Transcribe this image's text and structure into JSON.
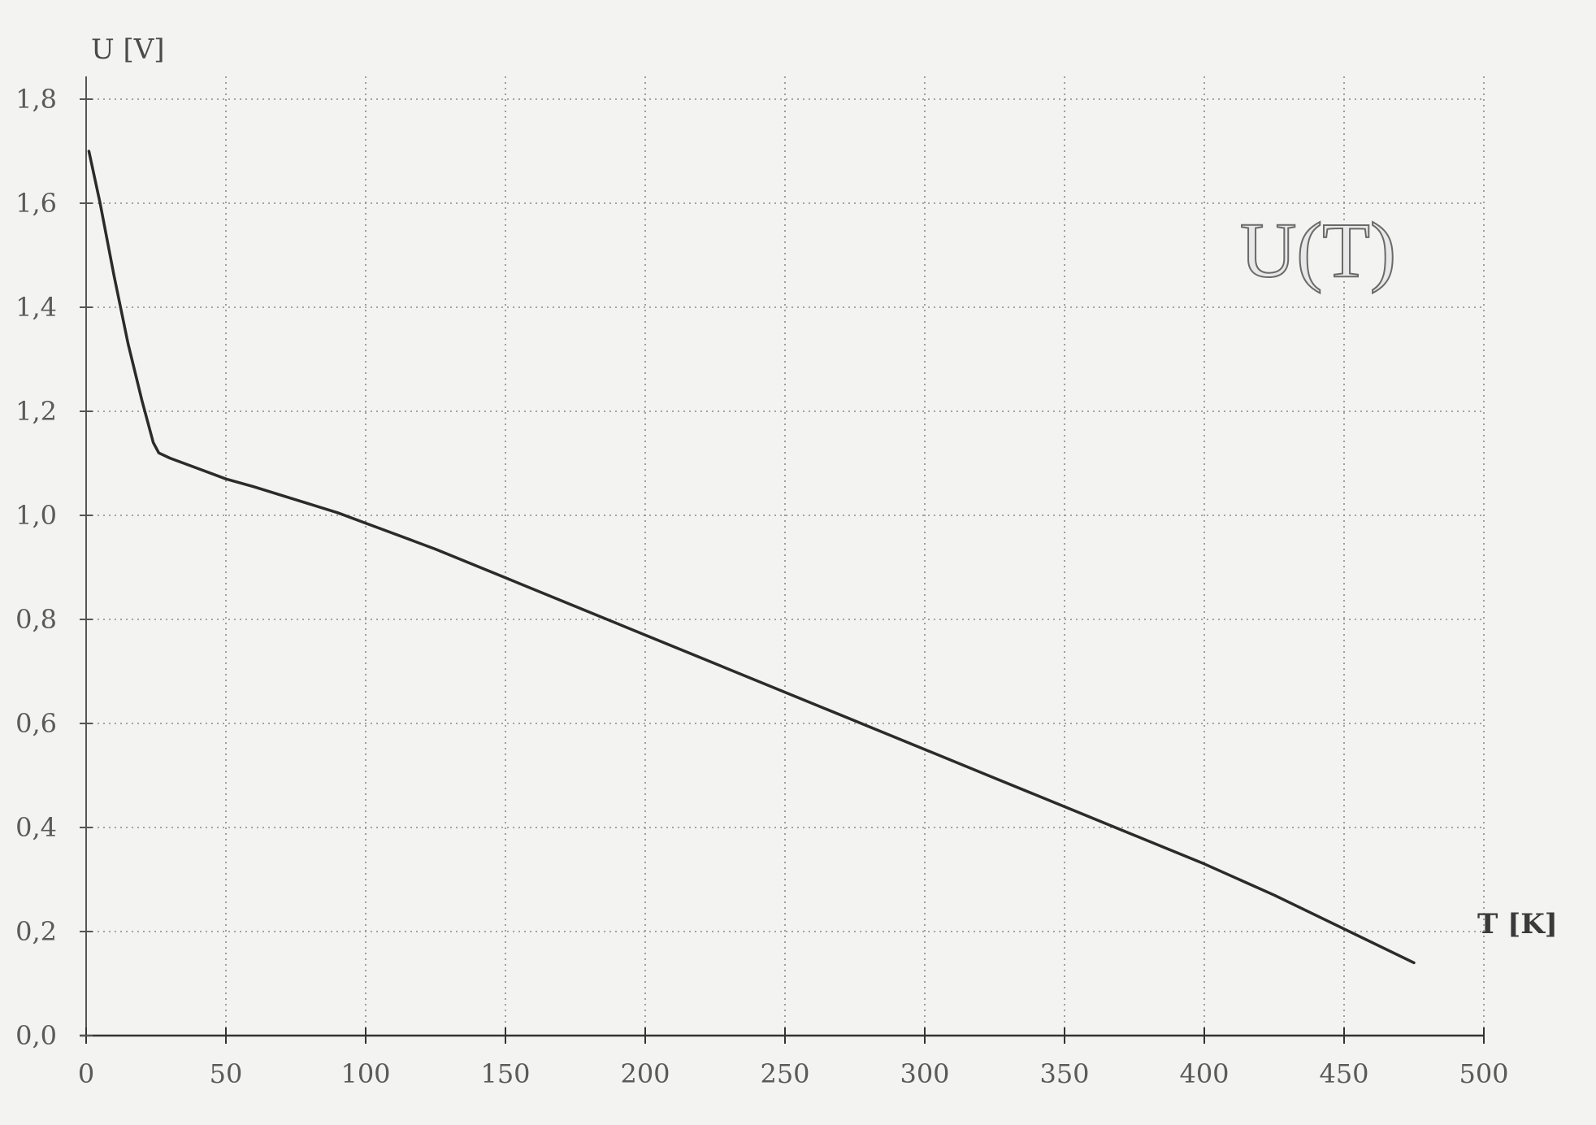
{
  "chart_data": {
    "type": "line",
    "title": "U(T)",
    "xlabel": "T [K]",
    "ylabel": "U [V]",
    "xlim": [
      0,
      500
    ],
    "ylim": [
      0.0,
      1.8
    ],
    "x_ticks": [
      0,
      50,
      100,
      150,
      200,
      250,
      300,
      350,
      400,
      450,
      500
    ],
    "x_tick_labels": [
      "0",
      "50",
      "100",
      "150",
      "200",
      "250",
      "300",
      "350",
      "400",
      "450",
      "500"
    ],
    "y_ticks": [
      0.0,
      0.2,
      0.4,
      0.6,
      0.8,
      1.0,
      1.2,
      1.4,
      1.6,
      1.8
    ],
    "y_tick_labels": [
      "0,0",
      "0,2",
      "0,4",
      "0,6",
      "0,8",
      "1,0",
      "1,2",
      "1,4",
      "1,6",
      "1,8"
    ],
    "grid": true,
    "series": [
      {
        "color": "#2b2b2b",
        "x": [
          1,
          5,
          10,
          15,
          20,
          22,
          24,
          26,
          30,
          40,
          50,
          60,
          75,
          90,
          100,
          125,
          150,
          175,
          200,
          225,
          250,
          275,
          300,
          325,
          350,
          375,
          400,
          425,
          450,
          475
        ],
        "y": [
          1.7,
          1.6,
          1.46,
          1.33,
          1.22,
          1.18,
          1.14,
          1.12,
          1.11,
          1.09,
          1.07,
          1.055,
          1.03,
          1.005,
          0.985,
          0.935,
          0.88,
          0.825,
          0.77,
          0.715,
          0.66,
          0.605,
          0.55,
          0.495,
          0.44,
          0.385,
          0.33,
          0.27,
          0.205,
          0.14
        ]
      }
    ]
  }
}
